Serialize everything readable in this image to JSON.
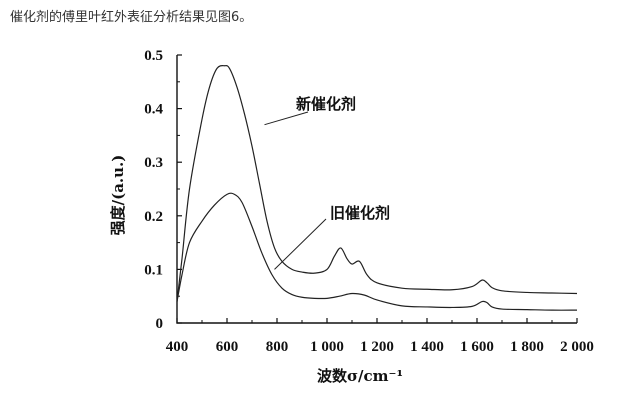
{
  "caption": "催化剂的傅里叶红外表征分析结果见图6。",
  "chart_data": {
    "type": "line",
    "title": "",
    "xlabel": "波数σ/cm⁻¹",
    "ylabel": "强度/(a.u.)",
    "xlim": [
      400,
      2000
    ],
    "ylim": [
      0,
      0.5
    ],
    "x_ticks": [
      400,
      600,
      800,
      1000,
      1200,
      1400,
      1600,
      1800,
      2000
    ],
    "x_tick_labels": [
      "400",
      "600",
      "800",
      "1 000",
      "1 200",
      "1 400",
      "1 600",
      "1 800",
      "2 000"
    ],
    "y_ticks": [
      0,
      0.1,
      0.2,
      0.3,
      0.4,
      0.5
    ],
    "y_tick_labels": [
      "0",
      "0.1",
      "0.2",
      "0.3",
      "0.4",
      "0.5"
    ],
    "grid": false,
    "legend": "annotations",
    "series": [
      {
        "name": "新催化剂",
        "x": [
          400,
          420,
          450,
          500,
          530,
          560,
          590,
          610,
          640,
          670,
          700,
          730,
          760,
          790,
          820,
          860,
          900,
          950,
          1000,
          1030,
          1055,
          1080,
          1100,
          1130,
          1160,
          1200,
          1300,
          1400,
          1500,
          1580,
          1620,
          1640,
          1660,
          1700,
          1800,
          1900,
          2000
        ],
        "values": [
          0.04,
          0.12,
          0.25,
          0.38,
          0.44,
          0.475,
          0.48,
          0.475,
          0.44,
          0.39,
          0.33,
          0.26,
          0.19,
          0.14,
          0.115,
          0.1,
          0.095,
          0.093,
          0.1,
          0.125,
          0.14,
          0.12,
          0.11,
          0.115,
          0.09,
          0.075,
          0.065,
          0.063,
          0.062,
          0.068,
          0.08,
          0.075,
          0.066,
          0.06,
          0.057,
          0.056,
          0.055
        ]
      },
      {
        "name": "旧催化剂",
        "x": [
          400,
          420,
          450,
          500,
          550,
          600,
          630,
          660,
          700,
          740,
          780,
          820,
          860,
          900,
          950,
          1000,
          1050,
          1100,
          1150,
          1200,
          1300,
          1400,
          1500,
          1580,
          1620,
          1640,
          1660,
          1700,
          1800,
          1900,
          2000
        ],
        "values": [
          0.04,
          0.09,
          0.15,
          0.19,
          0.22,
          0.24,
          0.24,
          0.225,
          0.18,
          0.13,
          0.09,
          0.065,
          0.053,
          0.048,
          0.046,
          0.046,
          0.05,
          0.055,
          0.052,
          0.043,
          0.032,
          0.03,
          0.029,
          0.031,
          0.04,
          0.038,
          0.03,
          0.026,
          0.025,
          0.024,
          0.024
        ]
      }
    ],
    "annotations": [
      {
        "text": "新催化剂",
        "target_x": 750,
        "target_y": 0.37
      },
      {
        "text": "旧催化剂",
        "target_x": 790,
        "target_y": 0.1
      }
    ]
  }
}
